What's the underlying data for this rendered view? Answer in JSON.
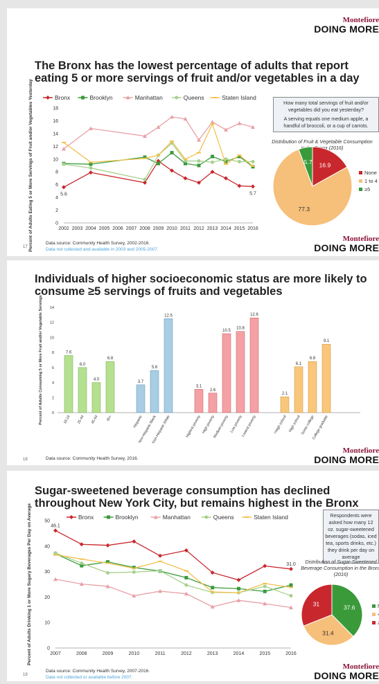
{
  "brand": {
    "top": "Montefiore",
    "bottom": "DOING MORE"
  },
  "slide1": {
    "title": "The Bronx has the lowest percentage of adults that report eating 5 or more servings of fruit and/or vegetables in a day",
    "page": "17",
    "source": "Data source: Community Health Survey, 2002-2016.",
    "source_note": "Data not collected and available in 2003 and 2005-2007.",
    "question": [
      "How many total servings of fruit and/or vegetables did you eat yesterday?",
      "A serving equals one medium apple, a handful of broccoli, or a cup of carrots."
    ],
    "pie_title": "Distribution of Fruit & Vegetable Consumption in the Bronx (2016)",
    "chart_data": {
      "type": "line",
      "ylabel": "Percent of Adults Eating 5 or More Servings of Fruit and/or Vegetables Yesterday",
      "ylim": [
        0,
        18
      ],
      "yticks": [
        0,
        2,
        4,
        6,
        8,
        10,
        12,
        14,
        16,
        18
      ],
      "xticks": [
        2002,
        2003,
        2004,
        2005,
        2006,
        2007,
        2008,
        2009,
        2010,
        2011,
        2012,
        2013,
        2014,
        2015,
        2016
      ],
      "x": [
        2002,
        2004,
        2008,
        2009,
        2010,
        2011,
        2012,
        2013,
        2014,
        2015,
        2016
      ],
      "series": [
        {
          "name": "Bronx",
          "color": "#c8282d",
          "marker": "diamond",
          "values": [
            5.6,
            7.9,
            6.3,
            9.7,
            8.2,
            7.0,
            6.3,
            8.0,
            7.0,
            5.8,
            5.7
          ]
        },
        {
          "name": "Brooklyn",
          "color": "#3a9a3a",
          "marker": "square",
          "values": [
            9.3,
            9.2,
            10.3,
            9.3,
            11.0,
            9.3,
            9.0,
            10.4,
            9.6,
            10.4,
            8.8
          ]
        },
        {
          "name": "Manhattan",
          "color": "#e8a0a6",
          "marker": "triangle",
          "values": [
            11.6,
            14.8,
            13.6,
            15.0,
            16.6,
            16.3,
            13.0,
            15.8,
            14.6,
            15.6,
            15.0
          ]
        },
        {
          "name": "Queens",
          "color": "#a8d08d",
          "marker": "circle",
          "values": [
            9.2,
            8.6,
            6.8,
            10.6,
            12.5,
            9.7,
            9.7,
            9.5,
            10.0,
            9.6,
            9.6
          ]
        },
        {
          "name": "Staten Island",
          "color": "#f2c14e",
          "marker": "line",
          "values": [
            12.6,
            9.5,
            10.1,
            10.6,
            12.8,
            10.0,
            11.0,
            15.5,
            9.2,
            10.6,
            8.9
          ]
        }
      ],
      "labels": [
        {
          "text": "5.6",
          "x": 2002,
          "y": 5.6
        },
        {
          "text": "5.7",
          "x": 2016,
          "y": 5.7
        }
      ],
      "pie": {
        "type": "pie",
        "slices": [
          {
            "name": "None",
            "value": 16.9,
            "color": "#c8282d"
          },
          {
            "name": "1 to 4",
            "value": 77.3,
            "color": "#f6bf7a"
          },
          {
            "name": "≥5",
            "value": 5.7,
            "color": "#3a9a3a"
          }
        ]
      }
    }
  },
  "slide2": {
    "title": "Individuals of higher socioeconomic status are more likely to consume ≥5 servings of fruits and vegetables",
    "page": "18",
    "source": "Data source: Community Health Survey, 2016.",
    "chart_data": {
      "type": "bar",
      "ylabel": "Percent of Adults Consuming 5 or More Fruit and/or Vegetable Servings",
      "ylim": [
        0,
        14
      ],
      "yticks": [
        0,
        2,
        4,
        6,
        8,
        10,
        12,
        14
      ],
      "groups": [
        {
          "name": "age",
          "color": "#b5e08f",
          "stroke": "#7fb55a",
          "categories": [
            "18-24",
            "25-44",
            "45-64",
            "65+"
          ],
          "values": [
            7.6,
            6.0,
            4.0,
            6.8
          ]
        },
        {
          "name": "race",
          "color": "#a9cde3",
          "stroke": "#6d9fc0",
          "categories": [
            "Hispanic",
            "Non-Hispanic Black",
            "Non-Hispanic White"
          ],
          "values": [
            3.7,
            5.6,
            12.5
          ]
        },
        {
          "name": "poverty",
          "color": "#f4a0a4",
          "stroke": "#d06a70",
          "categories": [
            "Highest poverty",
            "High poverty",
            "Medium poverty",
            "Low poverty",
            "Lowest poverty"
          ],
          "values": [
            3.1,
            2.6,
            10.5,
            10.8,
            12.6
          ]
        },
        {
          "name": "education",
          "color": "#f8c77c",
          "stroke": "#d49a45",
          "categories": [
            "<High school",
            "High school",
            "Some college",
            "College graduate"
          ],
          "values": [
            2.1,
            6.1,
            6.8,
            9.1
          ]
        }
      ]
    }
  },
  "slide3": {
    "title": "Sugar-sweetened beverage consumption has declined throughout New York City, but remains highest in the Bronx",
    "page": "19",
    "source": "Data source: Community Health Survey, 2007-2016.",
    "source_note": "Data not collected or available before 2007.",
    "question": "Respondents were asked how many 12 oz. sugar-sweetened beverages (sodas, iced tea, sports drinks, etc.) they drink per day on average",
    "pie_title": "Distribution of Sugar-Sweetened Beverage Consumption in the Bronx (2016)",
    "chart_data": {
      "type": "line",
      "ylabel": "Percent of Adults Drinking 1 or More Sugary Beverages Per Day on Average",
      "ylim": [
        0,
        50
      ],
      "yticks": [
        0,
        10,
        20,
        30,
        40,
        50
      ],
      "x": [
        2007,
        2008,
        2009,
        2010,
        2011,
        2012,
        2013,
        2014,
        2015,
        2016
      ],
      "series": [
        {
          "name": "Bronx",
          "color": "#c8282d",
          "marker": "diamond",
          "values": [
            46.1,
            40.7,
            40.3,
            41.8,
            36.2,
            38.3,
            29.6,
            26.7,
            32.2,
            31.0
          ]
        },
        {
          "name": "Brooklyn",
          "color": "#3a9a3a",
          "marker": "square",
          "values": [
            37.0,
            32.3,
            33.8,
            31.6,
            30.2,
            27.6,
            23.7,
            23.3,
            22.2,
            24.7
          ]
        },
        {
          "name": "Manhattan",
          "color": "#e8a0a6",
          "marker": "triangle",
          "values": [
            27.0,
            25.1,
            24.2,
            20.5,
            22.3,
            21.3,
            16.2,
            18.7,
            17.4,
            15.9
          ]
        },
        {
          "name": "Queens",
          "color": "#a8d08d",
          "marker": "circle",
          "values": [
            37.3,
            33.3,
            29.5,
            29.8,
            30.3,
            24.7,
            21.8,
            21.7,
            24.2,
            20.5
          ]
        },
        {
          "name": "Staten Island",
          "color": "#f2c14e",
          "marker": "line",
          "values": [
            36.6,
            34.9,
            33.3,
            31.3,
            34.0,
            30.3,
            22.0,
            21.7,
            25.3,
            23.8
          ]
        }
      ],
      "labels": [
        {
          "text": "46.1",
          "x": 2007,
          "y": 46.1
        },
        {
          "text": "31.0",
          "x": 2016,
          "y": 31.0
        }
      ],
      "pie": {
        "type": "pie",
        "slices": [
          {
            "name": "None",
            "value": 37.6,
            "color": "#3a9a3a"
          },
          {
            "name": "<1",
            "value": 31.4,
            "color": "#f6bf7a"
          },
          {
            "name": "≥1",
            "value": 31.0,
            "color": "#c8282d"
          }
        ]
      }
    }
  }
}
